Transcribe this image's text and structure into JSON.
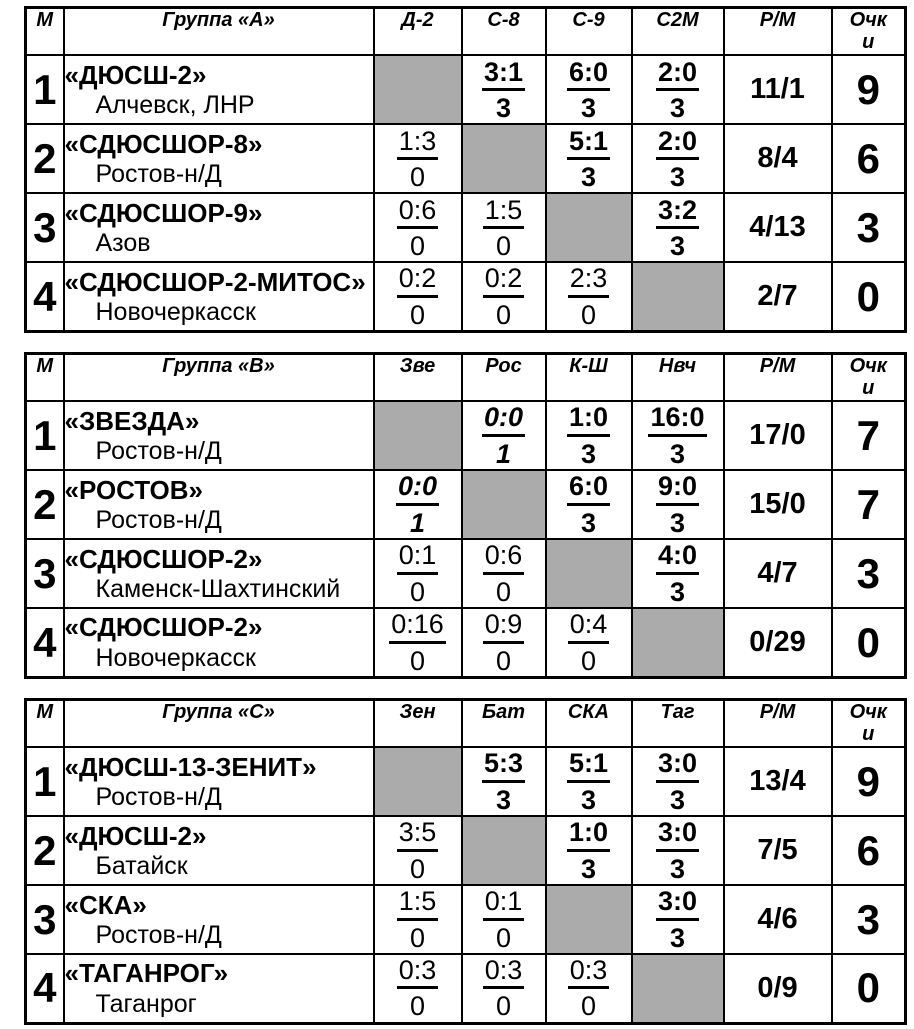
{
  "colors": {
    "diagonal_cell_gray": "#ABABAB",
    "border_black": "#000000",
    "page_background": "#ffffff"
  },
  "tables": [
    {
      "header": {
        "place": "М",
        "group": "Группа «А»",
        "opponents": [
          "Д-2",
          "С-8",
          "С-9",
          "С2М"
        ],
        "ratio": "Р/М",
        "points": "Очки"
      },
      "rows": [
        {
          "place": "1",
          "team": "«ДЮСШ-2»",
          "city": "Алчевск, ЛНР",
          "cells": [
            {
              "type": "self"
            },
            {
              "type": "score",
              "score": "3:1",
              "pts": "3",
              "style": "win"
            },
            {
              "type": "score",
              "score": "6:0",
              "pts": "3",
              "style": "win"
            },
            {
              "type": "score",
              "score": "2:0",
              "pts": "3",
              "style": "win"
            }
          ],
          "ratio": "11/1",
          "points": "9"
        },
        {
          "place": "2",
          "team": "«СДЮСШОР-8»",
          "city": "Ростов-н/Д",
          "cells": [
            {
              "type": "score",
              "score": "1:3",
              "pts": "0",
              "style": "loss"
            },
            {
              "type": "self"
            },
            {
              "type": "score",
              "score": "5:1",
              "pts": "3",
              "style": "win"
            },
            {
              "type": "score",
              "score": "2:0",
              "pts": "3",
              "style": "win"
            }
          ],
          "ratio": "8/4",
          "points": "6"
        },
        {
          "place": "3",
          "team": "«СДЮСШОР-9»",
          "city": "Азов",
          "cells": [
            {
              "type": "score",
              "score": "0:6",
              "pts": "0",
              "style": "loss"
            },
            {
              "type": "score",
              "score": "1:5",
              "pts": "0",
              "style": "loss"
            },
            {
              "type": "self"
            },
            {
              "type": "score",
              "score": "3:2",
              "pts": "3",
              "style": "win"
            }
          ],
          "ratio": "4/13",
          "points": "3"
        },
        {
          "place": "4",
          "team": "«СДЮСШОР-2-МИТОС»",
          "city": "Новочеркасск",
          "cells": [
            {
              "type": "score",
              "score": "0:2",
              "pts": "0",
              "style": "loss"
            },
            {
              "type": "score",
              "score": "0:2",
              "pts": "0",
              "style": "loss"
            },
            {
              "type": "score",
              "score": "2:3",
              "pts": "0",
              "style": "loss"
            },
            {
              "type": "self"
            }
          ],
          "ratio": "2/7",
          "points": "0"
        }
      ]
    },
    {
      "header": {
        "place": "М",
        "group": "Группа «В»",
        "opponents": [
          "Зве",
          "Рос",
          "К-Ш",
          "Нвч"
        ],
        "ratio": "Р/М",
        "points": "Очки"
      },
      "rows": [
        {
          "place": "1",
          "team": "«ЗВЕЗДА»",
          "city": "Ростов-н/Д",
          "cells": [
            {
              "type": "self"
            },
            {
              "type": "score",
              "score": "0:0",
              "pts": "1",
              "style": "draw"
            },
            {
              "type": "score",
              "score": "1:0",
              "pts": "3",
              "style": "win"
            },
            {
              "type": "score",
              "score": "16:0",
              "pts": "3",
              "style": "win"
            }
          ],
          "ratio": "17/0",
          "points": "7"
        },
        {
          "place": "2",
          "team": "«РОСТОВ»",
          "city": "Ростов-н/Д",
          "cells": [
            {
              "type": "score",
              "score": "0:0",
              "pts": "1",
              "style": "draw"
            },
            {
              "type": "self"
            },
            {
              "type": "score",
              "score": "6:0",
              "pts": "3",
              "style": "win"
            },
            {
              "type": "score",
              "score": "9:0",
              "pts": "3",
              "style": "win"
            }
          ],
          "ratio": "15/0",
          "points": "7"
        },
        {
          "place": "3",
          "team": "«СДЮСШОР-2»",
          "city": "Каменск-Шахтинский",
          "cells": [
            {
              "type": "score",
              "score": "0:1",
              "pts": "0",
              "style": "loss"
            },
            {
              "type": "score",
              "score": "0:6",
              "pts": "0",
              "style": "loss"
            },
            {
              "type": "self"
            },
            {
              "type": "score",
              "score": "4:0",
              "pts": "3",
              "style": "win"
            }
          ],
          "ratio": "4/7",
          "points": "3"
        },
        {
          "place": "4",
          "team": "«СДЮСШОР-2»",
          "city": "Новочеркасск",
          "cells": [
            {
              "type": "score",
              "score": "0:16",
              "pts": "0",
              "style": "loss"
            },
            {
              "type": "score",
              "score": "0:9",
              "pts": "0",
              "style": "loss"
            },
            {
              "type": "score",
              "score": "0:4",
              "pts": "0",
              "style": "loss"
            },
            {
              "type": "self"
            }
          ],
          "ratio": "0/29",
          "points": "0"
        }
      ]
    },
    {
      "header": {
        "place": "М",
        "group": "Группа «С»",
        "opponents": [
          "Зен",
          "Бат",
          "СКА",
          "Таг"
        ],
        "ratio": "Р/М",
        "points": "Очки"
      },
      "rows": [
        {
          "place": "1",
          "team": "«ДЮСШ-13-ЗЕНИТ»",
          "city": "Ростов-н/Д",
          "cells": [
            {
              "type": "self"
            },
            {
              "type": "score",
              "score": "5:3",
              "pts": "3",
              "style": "win"
            },
            {
              "type": "score",
              "score": "5:1",
              "pts": "3",
              "style": "win"
            },
            {
              "type": "score",
              "score": "3:0",
              "pts": "3",
              "style": "win"
            }
          ],
          "ratio": "13/4",
          "points": "9"
        },
        {
          "place": "2",
          "team": "«ДЮСШ-2»",
          "city": "Батайск",
          "cells": [
            {
              "type": "score",
              "score": "3:5",
              "pts": "0",
              "style": "loss"
            },
            {
              "type": "self"
            },
            {
              "type": "score",
              "score": "1:0",
              "pts": "3",
              "style": "win"
            },
            {
              "type": "score",
              "score": "3:0",
              "pts": "3",
              "style": "win"
            }
          ],
          "ratio": "7/5",
          "points": "6"
        },
        {
          "place": "3",
          "team": "«СКА»",
          "city": "Ростов-н/Д",
          "cells": [
            {
              "type": "score",
              "score": "1:5",
              "pts": "0",
              "style": "loss"
            },
            {
              "type": "score",
              "score": "0:1",
              "pts": "0",
              "style": "loss"
            },
            {
              "type": "self"
            },
            {
              "type": "score",
              "score": "3:0",
              "pts": "3",
              "style": "win"
            }
          ],
          "ratio": "4/6",
          "points": "3"
        },
        {
          "place": "4",
          "team": "«ТАГАНРОГ»",
          "city": "Таганрог",
          "cells": [
            {
              "type": "score",
              "score": "0:3",
              "pts": "0",
              "style": "loss"
            },
            {
              "type": "score",
              "score": "0:3",
              "pts": "0",
              "style": "loss"
            },
            {
              "type": "score",
              "score": "0:3",
              "pts": "0",
              "style": "loss"
            },
            {
              "type": "self"
            }
          ],
          "ratio": "0/9",
          "points": "0"
        }
      ]
    }
  ]
}
